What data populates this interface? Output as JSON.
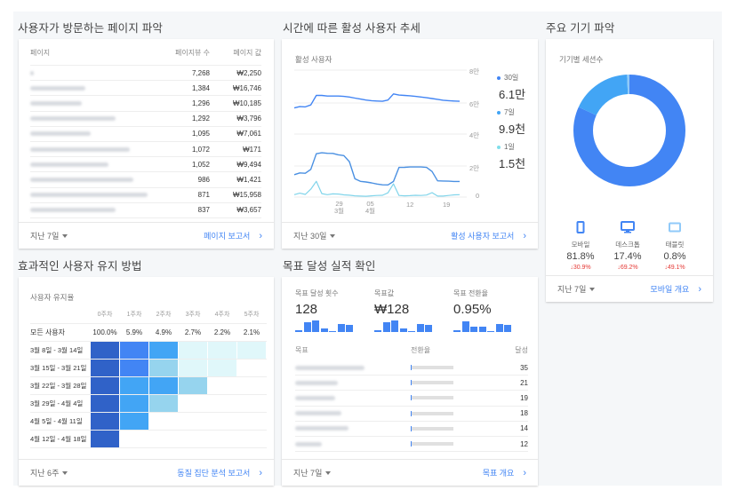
{
  "pages": {
    "title": "사용자가 방문하는 페이지 파악",
    "columns": [
      "페이지",
      "페이지뷰 수",
      "페이지 값"
    ],
    "rows": [
      {
        "page": "/",
        "views": "7,268",
        "value": "₩2,250",
        "blur_w": 4
      },
      {
        "page": "",
        "views": "1,384",
        "value": "₩16,746",
        "blur_w": 62
      },
      {
        "page": "",
        "views": "1,296",
        "value": "₩10,185",
        "blur_w": 58
      },
      {
        "page": "",
        "views": "1,292",
        "value": "₩3,796",
        "blur_w": 96
      },
      {
        "page": "",
        "views": "1,095",
        "value": "₩7,061",
        "blur_w": 68
      },
      {
        "page": "",
        "views": "1,072",
        "value": "₩171",
        "blur_w": 112
      },
      {
        "page": "",
        "views": "1,052",
        "value": "₩9,494",
        "blur_w": 88
      },
      {
        "page": "",
        "views": "986",
        "value": "₩1,421",
        "blur_w": 116
      },
      {
        "page": "",
        "views": "871",
        "value": "₩15,958",
        "blur_w": 132
      },
      {
        "page": "",
        "views": "837",
        "value": "₩3,657",
        "blur_w": 96
      }
    ],
    "footer_range": "지난 7일",
    "footer_link": "페이지 보고서"
  },
  "active_users": {
    "title": "시간에 따른 활성 사용자 추세",
    "card_label": "활성 사용자",
    "legend": [
      {
        "label": "30일",
        "value": "6.1만",
        "color": "#4285f4"
      },
      {
        "label": "7일",
        "value": "9.9천",
        "color": "#42a5f5"
      },
      {
        "label": "1일",
        "value": "1.5천",
        "color": "#80deea"
      }
    ],
    "axis_upper": [
      "8만",
      "6만"
    ],
    "axis_lower": [
      "4만",
      "2만",
      "0"
    ],
    "x_ticks": [
      {
        "day": "29",
        "month": "3월"
      },
      {
        "day": "05",
        "month": "4월"
      },
      {
        "day": "12",
        "month": ""
      },
      {
        "day": "19",
        "month": ""
      }
    ],
    "footer_range": "지난 30일",
    "footer_link": "활성 사용자 보고서"
  },
  "devices": {
    "title": "주요 기기 파악",
    "card_label": "기기별 세션수",
    "items": [
      {
        "name": "모바일",
        "pct": "81.8%",
        "change": "30.9%",
        "icon": "mobile-icon",
        "color": "#4285f4"
      },
      {
        "name": "데스크톱",
        "pct": "17.4%",
        "change": "69.2%",
        "icon": "desktop-icon",
        "color": "#42a5f5"
      },
      {
        "name": "태블릿",
        "pct": "0.8%",
        "change": "49.1%",
        "icon": "tablet-icon",
        "color": "#90caf9"
      }
    ],
    "footer_range": "지난 7일",
    "footer_link": "모바일 개요"
  },
  "retention": {
    "title": "효과적인 사용자 유지 방법",
    "card_label": "사용자 유지율",
    "weeks": [
      "0주차",
      "1주차",
      "2주차",
      "3주차",
      "4주차",
      "5주차"
    ],
    "all_label": "모든 사용자",
    "all_values": [
      "100.0%",
      "5.9%",
      "4.9%",
      "2.7%",
      "2.2%",
      "2.1%"
    ],
    "cohorts": [
      {
        "label": "3월 8일 - 3월 14일",
        "colors": [
          "#3062c8",
          "#4285f4",
          "#42a5f5",
          "#e0f7fa",
          "#e0f7fa",
          "#e0f7fa"
        ]
      },
      {
        "label": "3월 15일 - 3월 21일",
        "colors": [
          "#3062c8",
          "#4285f4",
          "#96d4ee",
          "#e0f7fa",
          "#e0f7fa"
        ]
      },
      {
        "label": "3월 22일 - 3월 28일",
        "colors": [
          "#3062c8",
          "#42a5f5",
          "#42a5f5",
          "#96d4ee"
        ]
      },
      {
        "label": "3월 29일 - 4월 4일",
        "colors": [
          "#3062c8",
          "#42a5f5",
          "#96d4ee"
        ]
      },
      {
        "label": "4월 5일 - 4월 11일",
        "colors": [
          "#3062c8",
          "#42a5f5"
        ]
      },
      {
        "label": "4월 12일 - 4월 18일",
        "colors": [
          "#3062c8"
        ]
      }
    ],
    "footer_range": "지난 6주",
    "footer_link": "동질 집단 분석 보고서"
  },
  "goals": {
    "title": "목표 달성 실적 확인",
    "kpis": [
      {
        "label": "목표 달성 횟수",
        "value": "128",
        "spark": [
          2,
          11,
          13,
          4,
          1,
          9,
          8
        ]
      },
      {
        "label": "목표값",
        "value": "₩128",
        "spark": [
          2,
          11,
          13,
          4,
          1,
          9,
          8
        ]
      },
      {
        "label": "목표 전환율",
        "value": "0.95%",
        "spark": [
          2,
          12,
          6,
          6,
          1,
          9,
          8
        ]
      }
    ],
    "columns": [
      "목표",
      "전환율",
      "달성"
    ],
    "rows": [
      {
        "goal": "",
        "count": "35",
        "blur_w": 78
      },
      {
        "goal": "",
        "count": "21",
        "blur_w": 48
      },
      {
        "goal": "",
        "count": "19",
        "blur_w": 45
      },
      {
        "goal": "",
        "count": "18",
        "blur_w": 52
      },
      {
        "goal": "",
        "count": "14",
        "blur_w": 60
      },
      {
        "goal": "",
        "count": "12",
        "blur_w": 30
      }
    ],
    "footer_range": "지난 7일",
    "footer_link": "목표 개요"
  },
  "chart_data": [
    {
      "type": "line",
      "title": "활성 사용자",
      "x": [
        "3/23",
        "3/24",
        "3/25",
        "3/26",
        "3/27",
        "3/28",
        "3/29",
        "3/30",
        "3/31",
        "4/1",
        "4/2",
        "4/3",
        "4/4",
        "4/5",
        "4/6",
        "4/7",
        "4/8",
        "4/9",
        "4/10",
        "4/11",
        "4/12",
        "4/13",
        "4/14",
        "4/15",
        "4/16",
        "4/17",
        "4/18",
        "4/19",
        "4/20",
        "4/21",
        "4/22"
      ],
      "x_ticks": [
        "29 3월",
        "05 4월",
        "12",
        "19"
      ],
      "series": [
        {
          "name": "30일",
          "values": [
            57000,
            57800,
            57600,
            58800,
            64600,
            64600,
            64200,
            64200,
            64200,
            64000,
            63600,
            63000,
            62400,
            61800,
            61400,
            61200,
            61000,
            61800,
            65500,
            64800,
            64600,
            64400,
            64000,
            63600,
            63200,
            62700,
            62200,
            61700,
            61400,
            61200,
            61000
          ],
          "panel": "upper",
          "ylim": [
            50000,
            80000
          ]
        },
        {
          "name": "7일",
          "values": [
            14200,
            15300,
            15100,
            17600,
            27500,
            28100,
            27800,
            27700,
            26800,
            26300,
            22500,
            11600,
            10000,
            9600,
            9000,
            8300,
            7800,
            7700,
            9900,
            18800,
            18900,
            19100,
            19100,
            19100,
            18800,
            16200,
            10300,
            10200,
            10100,
            9900,
            9900
          ],
          "panel": "lower",
          "ylim": [
            0,
            40000
          ]
        },
        {
          "name": "1일",
          "values": [
            1500,
            2500,
            1700,
            5000,
            10000,
            2200,
            1500,
            2000,
            1900,
            1400,
            1200,
            800,
            600,
            500,
            800,
            1000,
            1100,
            2700,
            8400,
            1000,
            800,
            900,
            1100,
            1000,
            1300,
            2800,
            600,
            600,
            1000,
            1400,
            1500
          ],
          "panel": "lower",
          "ylim": [
            0,
            40000
          ]
        }
      ],
      "y_ticks_upper": [
        "8만",
        "6만"
      ],
      "y_ticks_lower": [
        "4만",
        "2만",
        "0"
      ],
      "legend_position": "right"
    },
    {
      "type": "pie",
      "title": "기기별 세션수",
      "categories": [
        "모바일",
        "데스크톱",
        "태블릿"
      ],
      "values": [
        81.8,
        17.4,
        0.8
      ],
      "donut": true
    },
    {
      "type": "heatmap",
      "title": "사용자 유지율",
      "x": [
        "0주차",
        "1주차",
        "2주차",
        "3주차",
        "4주차",
        "5주차"
      ],
      "y": [
        "모든 사용자",
        "3월 8일 - 3월 14일",
        "3월 15일 - 3월 21일",
        "3월 22일 - 3월 28일",
        "3월 29일 - 4월 4일",
        "4월 5일 - 4월 11일",
        "4월 12일 - 4월 18일"
      ],
      "all_users": [
        100.0,
        5.9,
        4.9,
        2.7,
        2.2,
        2.1
      ]
    }
  ]
}
